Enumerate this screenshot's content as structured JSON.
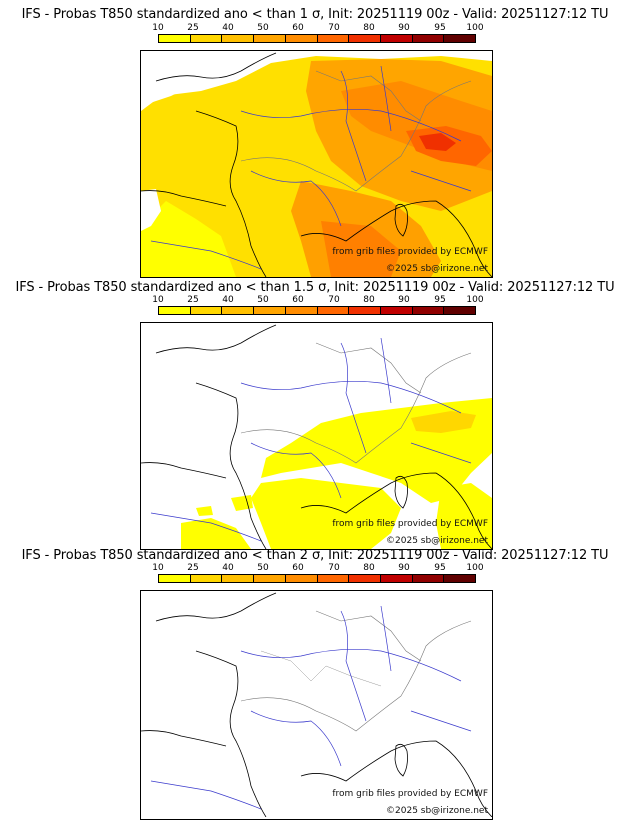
{
  "colorbar": {
    "labels": [
      "10",
      "25",
      "40",
      "50",
      "60",
      "70",
      "80",
      "90",
      "95",
      "100"
    ],
    "colors": [
      "#ffff00",
      "#ffd700",
      "#ffc000",
      "#ffa500",
      "#ff8c00",
      "#ff6600",
      "#f03000",
      "#c00000",
      "#900000",
      "#600000"
    ]
  },
  "panels": [
    {
      "title": "IFS - Probas T850  standardized ano < than 1 σ, Init: 20251119 00z - Valid: 20251127:12 TU",
      "source_credit": "from grib files provided by ECMWF",
      "copyright": "©2025 sb@irizone.net"
    },
    {
      "title": "IFS - Probas T850  standardized ano < than 1.5 σ, Init: 20251119 00z - Valid: 20251127:12 TU",
      "source_credit": "from grib files provided by ECMWF",
      "copyright": "©2025 sb@irizone.net"
    },
    {
      "title": "IFS - Probas T850  standardized ano < than 2 σ, Init: 20251119 00z - Valid: 20251127:12 TU",
      "source_credit": "from grib files provided by ECMWF",
      "copyright": "©2025 sb@irizone.net"
    }
  ]
}
